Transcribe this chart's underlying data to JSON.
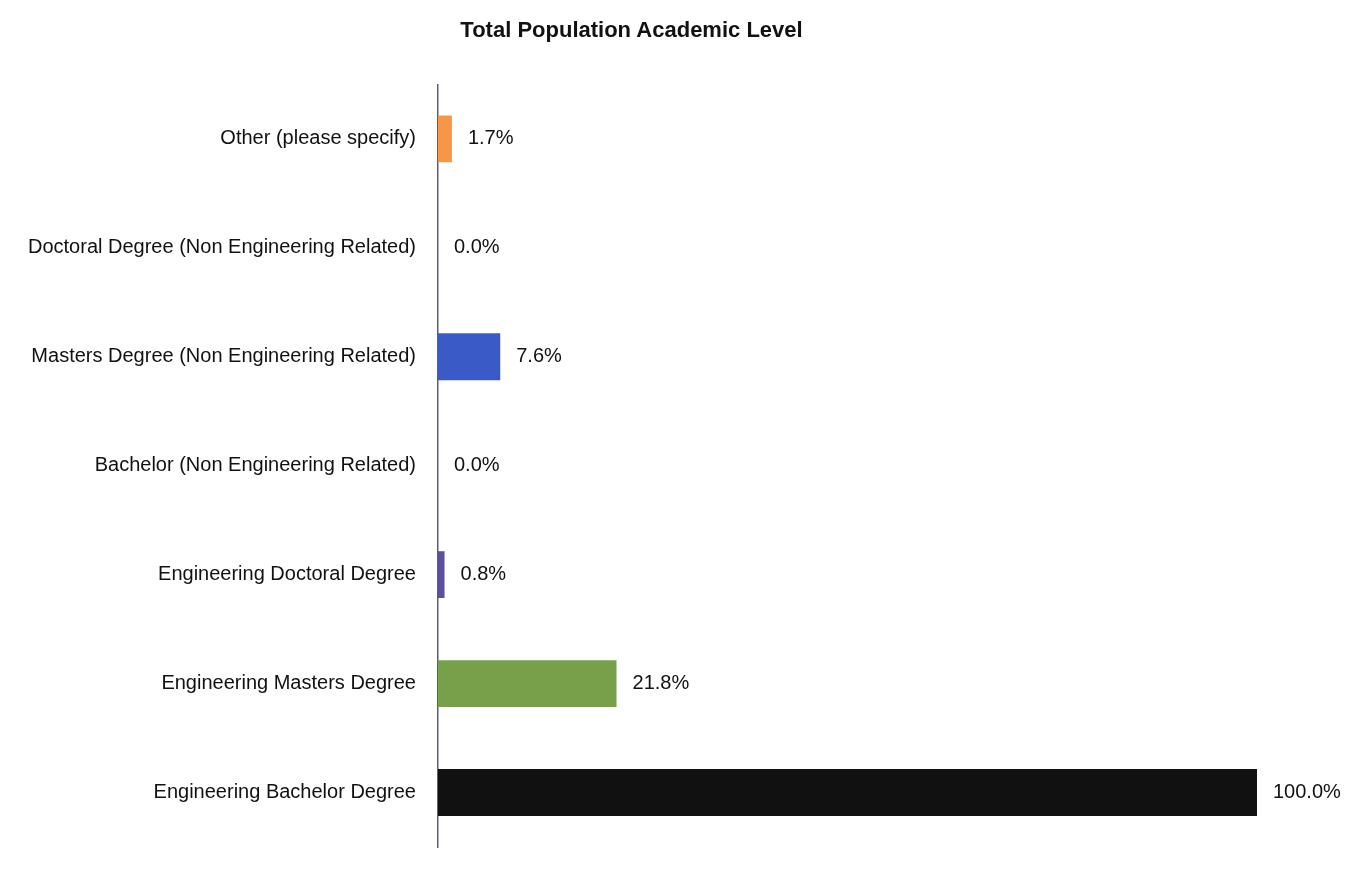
{
  "chart_data": {
    "type": "bar",
    "orientation": "horizontal",
    "title": "Total Population Academic Level",
    "categories": [
      "Other (please specify)",
      "Doctoral Degree (Non Engineering Related)",
      "Masters Degree (Non Engineering Related)",
      "Bachelor (Non Engineering Related)",
      "Engineering Doctoral Degree",
      "Engineering Masters Degree",
      "Engineering Bachelor Degree"
    ],
    "values": [
      1.7,
      0.0,
      7.6,
      0.0,
      0.8,
      21.8,
      100.0
    ],
    "colors": [
      "#f79646",
      "#c0504d",
      "#3a5bc7",
      "#4bacc6",
      "#5b4fa0",
      "#77a04a",
      "#111111"
    ],
    "value_labels": [
      "1.7%",
      "0.0%",
      "7.6%",
      "0.0%",
      "0.8%",
      "21.8%",
      "100.0%"
    ],
    "tick_labels": "y"
  }
}
